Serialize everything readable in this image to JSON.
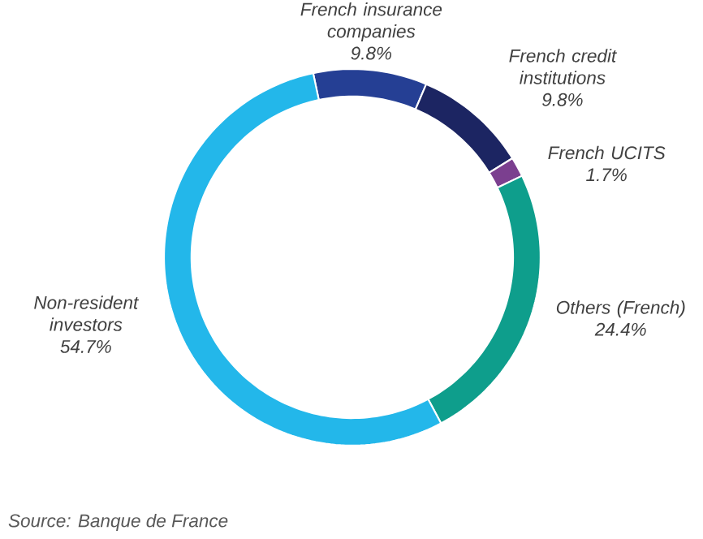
{
  "chart_data": {
    "type": "donut",
    "categories": [
      "French insurance companies",
      "French credit institutions",
      "French UCITS",
      "Others (French)",
      "Non-resident investors"
    ],
    "values": [
      9.8,
      9.8,
      1.7,
      24.4,
      54.7
    ],
    "value_labels": [
      "9.8%",
      "9.8%",
      "1.7%",
      "24.4%",
      "54.7%"
    ],
    "colors": [
      "#253f94",
      "#1c2562",
      "#7b3f8f",
      "#0e9e8c",
      "#23b7ea"
    ],
    "annotations": [
      "Source: Banque de France"
    ]
  }
}
